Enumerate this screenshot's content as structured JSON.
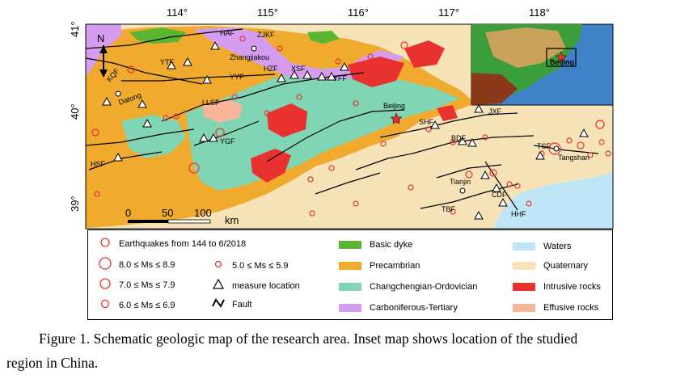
{
  "map": {
    "lon_ticks": [
      "114°",
      "115°",
      "116°",
      "117°",
      "118°"
    ],
    "lat_ticks": [
      "41°",
      "40°",
      "39°"
    ],
    "north_label": "N",
    "scale_bar": {
      "labels": [
        "0",
        "50",
        "100"
      ],
      "unit": "km"
    },
    "faults": [
      "HAF",
      "ZJKF",
      "YTF",
      "KQF",
      "XSF",
      "HZF",
      "YYF",
      "YFF",
      "LLSF",
      "YGF",
      "HSF",
      "SHF",
      "JXF",
      "BDF",
      "TSF",
      "CDF",
      "TBF",
      "HHF"
    ],
    "cities": [
      "Zhangjiakou",
      "Datong",
      "Beijing",
      "Tianjin",
      "Tangshan"
    ],
    "inset_label": "Beijing",
    "colors": {
      "basic_dyke": "#5ab531",
      "precambrian": "#f0ab2e",
      "changchengian_ordovician": "#7fd5b4",
      "carboniferous_tertiary": "#d59cf0",
      "waters": "#bfe6f7",
      "quaternary": "#f7e3b8",
      "intrusive": "#e8322f",
      "effusive": "#f7b59a",
      "earthquake": "#e8322f"
    }
  },
  "legend": {
    "earthquakes_title": "Earthquakes from 144 to 6/2018",
    "mag_8": "8.0 ≤ Ms ≤ 8.9",
    "mag_7": "7.0 ≤ Ms ≤ 7.9",
    "mag_6": "6.0 ≤ Ms ≤ 6.9",
    "mag_5": "5.0 ≤ Ms ≤ 5.9",
    "measure": "measure location",
    "fault": "Fault",
    "basic_dyke": "Basic dyke",
    "precambrian": "Precambrian",
    "changchengian": "Changchengian-Ordovician",
    "carboniferous": "Carboniferous-Tertiary",
    "waters": "Waters",
    "quaternary": "Quaternary",
    "intrusive": "Intrusive rocks",
    "effusive": "Effusive rocks"
  },
  "caption": {
    "line1": "Figure 1. Schematic geologic map of the research area. Inset map shows location of the studied",
    "line2": "region in China."
  }
}
